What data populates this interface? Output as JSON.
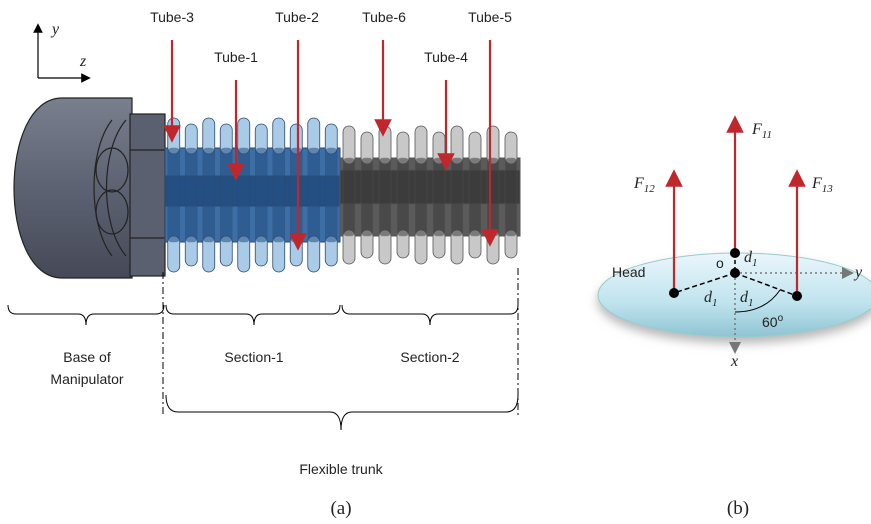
{
  "panel_a": {
    "axes": {
      "y": "y",
      "z": "z"
    },
    "tubes": [
      "Tube-3",
      "Tube-1",
      "Tube-2",
      "Tube-6",
      "Tube-4",
      "Tube-5"
    ],
    "base_label": [
      "Base of",
      "Manipulator"
    ],
    "sections": [
      "Section-1",
      "Section-2"
    ],
    "trunk_label": "Flexible trunk",
    "caption": "(a)"
  },
  "panel_b": {
    "forces": [
      {
        "main": "F",
        "sub": "11"
      },
      {
        "main": "F",
        "sub": "12"
      },
      {
        "main": "F",
        "sub": "13"
      }
    ],
    "distances": [
      {
        "main": "d",
        "sub": "1"
      },
      {
        "main": "d",
        "sub": "1"
      },
      {
        "main": "d",
        "sub": "1"
      }
    ],
    "head": "Head",
    "origin": "o",
    "axes": {
      "y": "y",
      "x": "x"
    },
    "angle": {
      "main": "60",
      "sup": "o"
    },
    "caption": "(b)"
  }
}
